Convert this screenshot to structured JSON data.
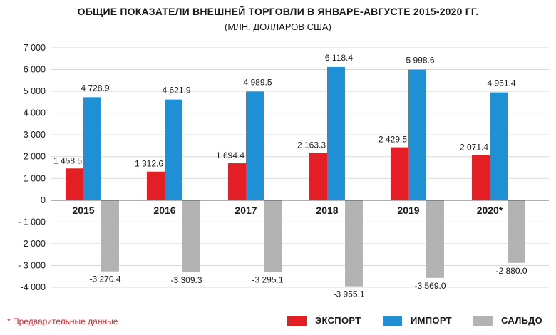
{
  "title": "ОБЩИЕ ПОКАЗАТЕЛИ ВНЕШНЕЙ ТОРГОВЛИ В ЯНВАРЕ-АВГУСТЕ 2015-2020 ГГ.",
  "subtitle": "(МЛН. ДОЛЛАРОВ США)",
  "footnote": "* Предварительные данные",
  "colors": {
    "export": "#e31e24",
    "import": "#1f8fd6",
    "balance": "#b3b3b3",
    "grid": "#d9d9d9"
  },
  "chart_data": {
    "type": "bar",
    "categories": [
      "2015",
      "2016",
      "2017",
      "2018",
      "2019",
      "2020*"
    ],
    "series": [
      {
        "name": "ЭКСПОРТ",
        "values": [
          1458.5,
          1312.6,
          1694.4,
          2163.3,
          2429.5,
          2071.4
        ]
      },
      {
        "name": "ИМПОРТ",
        "values": [
          4728.9,
          4621.9,
          4989.5,
          6118.4,
          5998.6,
          4951.4
        ]
      },
      {
        "name": "САЛЬДО",
        "values": [
          -3270.4,
          -3309.3,
          -3295.1,
          -3955.1,
          -3569.0,
          -2880.0
        ]
      }
    ],
    "value_labels": [
      [
        "1 458.5",
        "1 312.6",
        "1 694.4",
        "2 163.3",
        "2 429.5",
        "2 071.4"
      ],
      [
        "4 728.9",
        "4 621.9",
        "4 989.5",
        "6 118.4",
        "5 998.6",
        "4 951.4"
      ],
      [
        "-3 270.4",
        "-3 309.3",
        "-3 295.1",
        "-3 955.1",
        "-3 569.0",
        "-2 880.0"
      ]
    ],
    "ylim": [
      -4000,
      7000
    ],
    "yticks": [
      7000,
      6000,
      5000,
      4000,
      3000,
      2000,
      1000,
      0,
      -1000,
      -2000,
      -3000,
      -4000
    ],
    "ytick_labels": [
      "7 000",
      "6 000",
      "5 000",
      "4 000",
      "3 000",
      "2 000",
      "1 000",
      "0",
      "- 1 000",
      "- 2 000",
      "- 3 000",
      "-4 000"
    ],
    "grid": true,
    "legend_position": "bottom-right"
  }
}
